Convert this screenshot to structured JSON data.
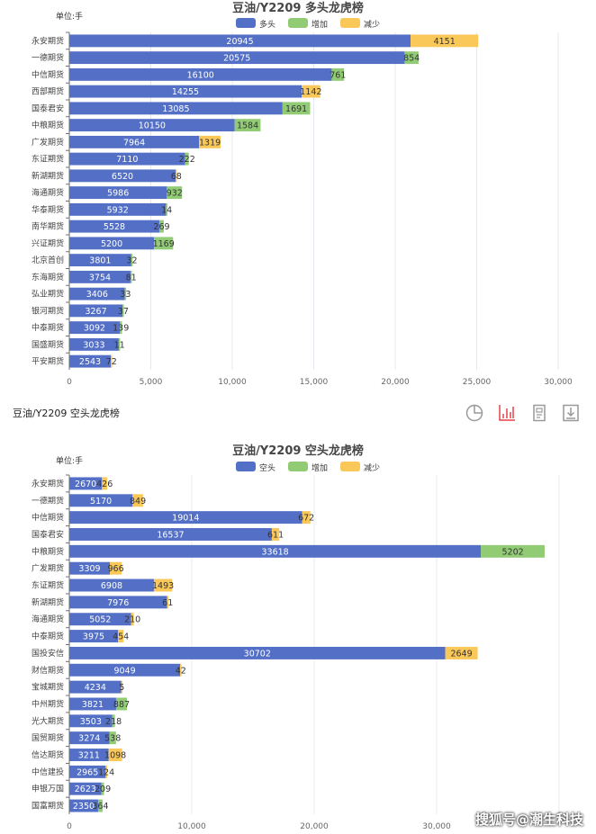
{
  "colors": {
    "base": "#5470c6",
    "increase": "#91cc75",
    "decrease": "#fac858",
    "grid": "#e6e8f0",
    "active_tool": "#e8404a",
    "tool": "#999999"
  },
  "toolbar": {
    "label": "豆油/Y2209 空头龙虎榜",
    "icons": [
      "pie-chart-icon",
      "bar-chart-icon",
      "data-view-icon",
      "download-icon"
    ]
  },
  "watermark": "搜狐号@潮生科技",
  "chart_data": [
    {
      "type": "bar",
      "orientation": "horizontal-stacked",
      "title": "豆油/Y2209 多头龙虎榜",
      "unit_label": "单位:手",
      "legend": [
        "多头",
        "增加",
        "减少"
      ],
      "xlim": [
        0,
        30000
      ],
      "xticks": [
        0,
        5000,
        10000,
        15000,
        20000,
        25000,
        30000
      ],
      "xtick_labels": [
        "0",
        "5,000",
        "10,000",
        "15,000",
        "20,000",
        "25,000",
        "30,000"
      ],
      "rows": [
        {
          "name": "永安期货",
          "base": 20945,
          "change": 4151,
          "kind": "decrease"
        },
        {
          "name": "一德期货",
          "base": 20575,
          "change": 854,
          "kind": "increase"
        },
        {
          "name": "中信期货",
          "base": 16100,
          "change": 761,
          "kind": "increase"
        },
        {
          "name": "西部期货",
          "base": 14255,
          "change": 1142,
          "kind": "decrease"
        },
        {
          "name": "国泰君安",
          "base": 13085,
          "change": 1691,
          "kind": "increase"
        },
        {
          "name": "中粮期货",
          "base": 10150,
          "change": 1584,
          "kind": "increase"
        },
        {
          "name": "广发期货",
          "base": 7964,
          "change": 1319,
          "kind": "decrease"
        },
        {
          "name": "东证期货",
          "base": 7110,
          "change": 222,
          "kind": "increase"
        },
        {
          "name": "新湖期货",
          "base": 6520,
          "change": 68,
          "kind": "decrease"
        },
        {
          "name": "海通期货",
          "base": 5986,
          "change": 932,
          "kind": "increase"
        },
        {
          "name": "华泰期货",
          "base": 5932,
          "change": 14,
          "kind": "increase"
        },
        {
          "name": "南华期货",
          "base": 5528,
          "change": 269,
          "kind": "increase"
        },
        {
          "name": "兴证期货",
          "base": 5200,
          "change": 1169,
          "kind": "increase"
        },
        {
          "name": "北京首创",
          "base": 3801,
          "change": 32,
          "kind": "increase"
        },
        {
          "name": "东海期货",
          "base": 3754,
          "change": 81,
          "kind": "increase"
        },
        {
          "name": "弘业期货",
          "base": 3406,
          "change": 33,
          "kind": "increase"
        },
        {
          "name": "银河期货",
          "base": 3267,
          "change": 37,
          "kind": "increase"
        },
        {
          "name": "中泰期货",
          "base": 3092,
          "change": 139,
          "kind": "increase"
        },
        {
          "name": "国盛期货",
          "base": 3033,
          "change": 11,
          "kind": "increase"
        },
        {
          "name": "平安期货",
          "base": 2543,
          "change": 72,
          "kind": "decrease"
        }
      ]
    },
    {
      "type": "bar",
      "orientation": "horizontal-stacked",
      "title": "豆油/Y2209 空头龙虎榜",
      "unit_label": "单位:手",
      "legend": [
        "空头",
        "增加",
        "减少"
      ],
      "xlim": [
        0,
        40000
      ],
      "xticks": [
        0,
        10000,
        20000,
        30000,
        40000
      ],
      "xtick_labels": [
        "0",
        "10,000",
        "20,000",
        "30,000",
        ""
      ],
      "rows": [
        {
          "name": "永安期货",
          "base": 2670,
          "change": 426,
          "kind": "decrease"
        },
        {
          "name": "一德期货",
          "base": 5170,
          "change": 849,
          "kind": "decrease"
        },
        {
          "name": "中信期货",
          "base": 19014,
          "change": 672,
          "kind": "decrease"
        },
        {
          "name": "国泰君安",
          "base": 16537,
          "change": 611,
          "kind": "decrease"
        },
        {
          "name": "中粮期货",
          "base": 33618,
          "change": 5202,
          "kind": "increase"
        },
        {
          "name": "广发期货",
          "base": 3309,
          "change": 966,
          "kind": "decrease"
        },
        {
          "name": "东证期货",
          "base": 6908,
          "change": 1493,
          "kind": "decrease"
        },
        {
          "name": "新湖期货",
          "base": 7976,
          "change": 61,
          "kind": "decrease"
        },
        {
          "name": "海通期货",
          "base": 5052,
          "change": 210,
          "kind": "decrease"
        },
        {
          "name": "中泰期货",
          "base": 3975,
          "change": 454,
          "kind": "decrease"
        },
        {
          "name": "国投安信",
          "base": 30702,
          "change": 2649,
          "kind": "decrease"
        },
        {
          "name": "财信期货",
          "base": 9049,
          "change": 42,
          "kind": "decrease"
        },
        {
          "name": "宝城期货",
          "base": 4234,
          "change": 5,
          "kind": "decrease"
        },
        {
          "name": "中州期货",
          "base": 3821,
          "change": 887,
          "kind": "increase"
        },
        {
          "name": "光大期货",
          "base": 3503,
          "change": 218,
          "kind": "increase"
        },
        {
          "name": "国贸期货",
          "base": 3274,
          "change": 538,
          "kind": "increase"
        },
        {
          "name": "信达期货",
          "base": 3211,
          "change": 1098,
          "kind": "decrease"
        },
        {
          "name": "中信建投",
          "base": 2965,
          "change": 124,
          "kind": "decrease"
        },
        {
          "name": "申银万国",
          "base": 2623,
          "change": 209,
          "kind": "increase"
        },
        {
          "name": "国富期货",
          "base": 2350,
          "change": 364,
          "kind": "increase"
        }
      ]
    }
  ]
}
